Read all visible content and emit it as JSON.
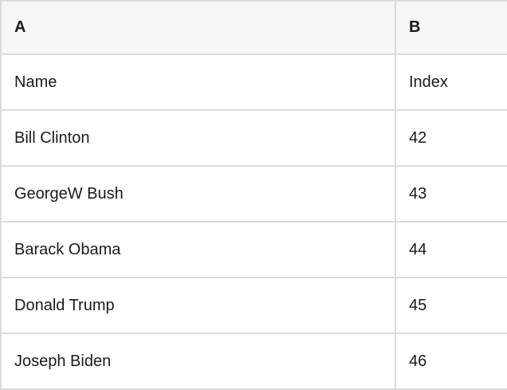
{
  "table": {
    "header": {
      "a": "A",
      "b": "B"
    },
    "rows": [
      {
        "a": "Name",
        "b": "Index"
      },
      {
        "a": "Bill Clinton",
        "b": "42"
      },
      {
        "a": "GeorgeW Bush",
        "b": "43"
      },
      {
        "a": "Barack Obama",
        "b": "44"
      },
      {
        "a": "Donald Trump",
        "b": "45"
      },
      {
        "a": "Joseph Biden",
        "b": "46"
      }
    ]
  },
  "colors": {
    "header_bg": "#f7f7f7",
    "border": "#dbdbdb",
    "text": "#1b1b1b",
    "row_bg": "#ffffff"
  }
}
